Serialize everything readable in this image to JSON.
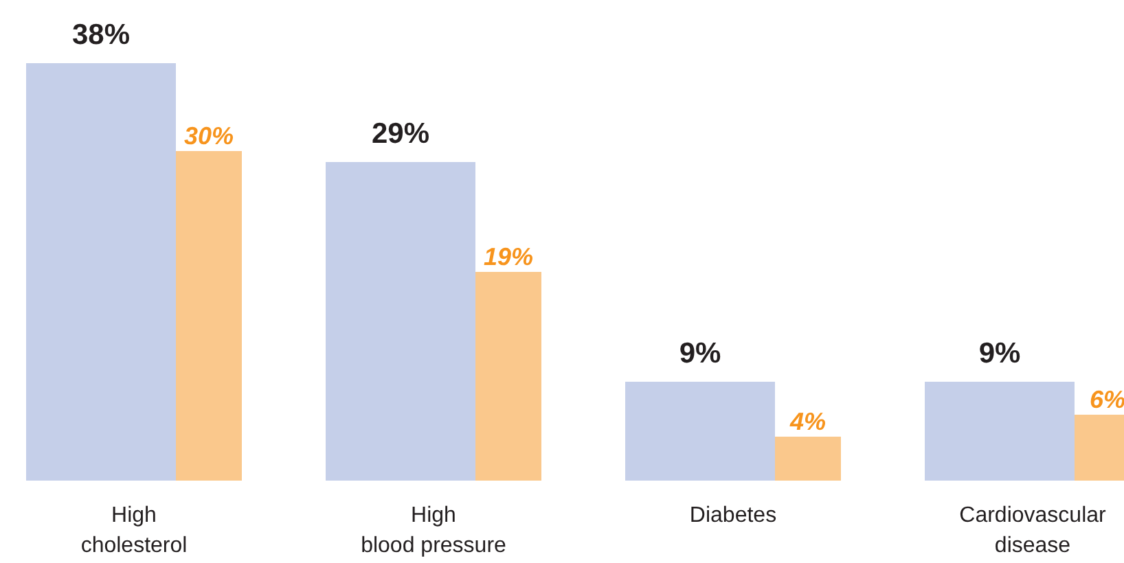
{
  "chart_data": {
    "type": "bar",
    "categories": [
      "High cholesterol",
      "High blood pressure",
      "Diabetes",
      "Cardiovascular disease"
    ],
    "series": [
      {
        "color": "#c5cfe9",
        "values": [
          38,
          29,
          9,
          9
        ],
        "value_labels": [
          "38%",
          "29%",
          "9%",
          "9%"
        ]
      },
      {
        "color": "#fac88c",
        "values": [
          30,
          19,
          4,
          6
        ],
        "value_labels": [
          "30%",
          "19%",
          "4%",
          "6%"
        ]
      }
    ]
  }
}
